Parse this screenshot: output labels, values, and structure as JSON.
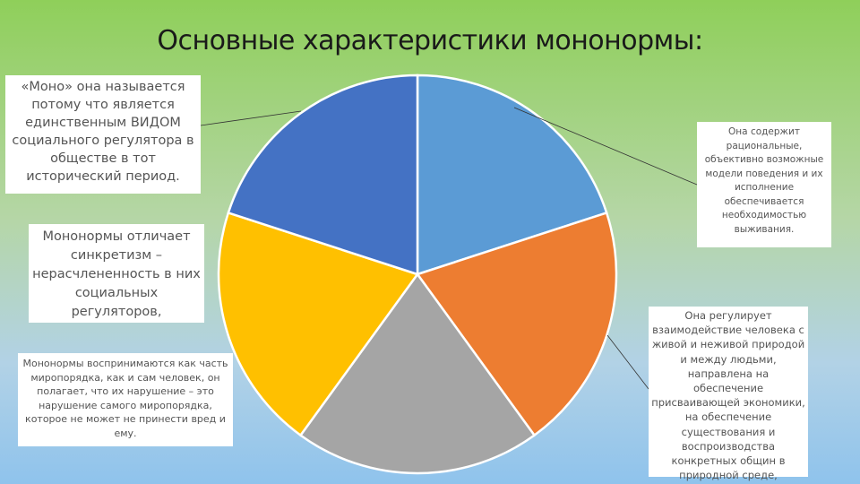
{
  "title": "Основные характеристики мононормы:",
  "chart_data": {
    "type": "pie",
    "values": [
      20,
      20,
      20,
      20,
      20
    ],
    "colors": [
      "#5b9bd5",
      "#ed7d31",
      "#a5a5a5",
      "#ffc000",
      "#4472c4"
    ]
  },
  "callouts": {
    "box1": "«Моно» она называется потому что является единственным ВИДОМ социального регулятора в обществе в тот исторический период.",
    "box2": "Мононормы отличает синкретизм – нерасчлененность в них социальных регуляторов,",
    "box3": "Мононормы воспринимаются как часть миропорядка, как и сам человек, он полагает, что их нарушение – это нарушение самого миропорядка, которое не может не принести вред и ему.",
    "box4": "Она содержит рациональные, объективно возможные модели поведения и их исполнение обеспечивается необходимостью выживания.",
    "box5": "Она регулирует взаимодействие человека с живой и неживой природой и между людьми, направлена на обеспечение присваивающей экономики, на обеспечение существования и воспроизводства конкретных общин в природной среде,"
  }
}
